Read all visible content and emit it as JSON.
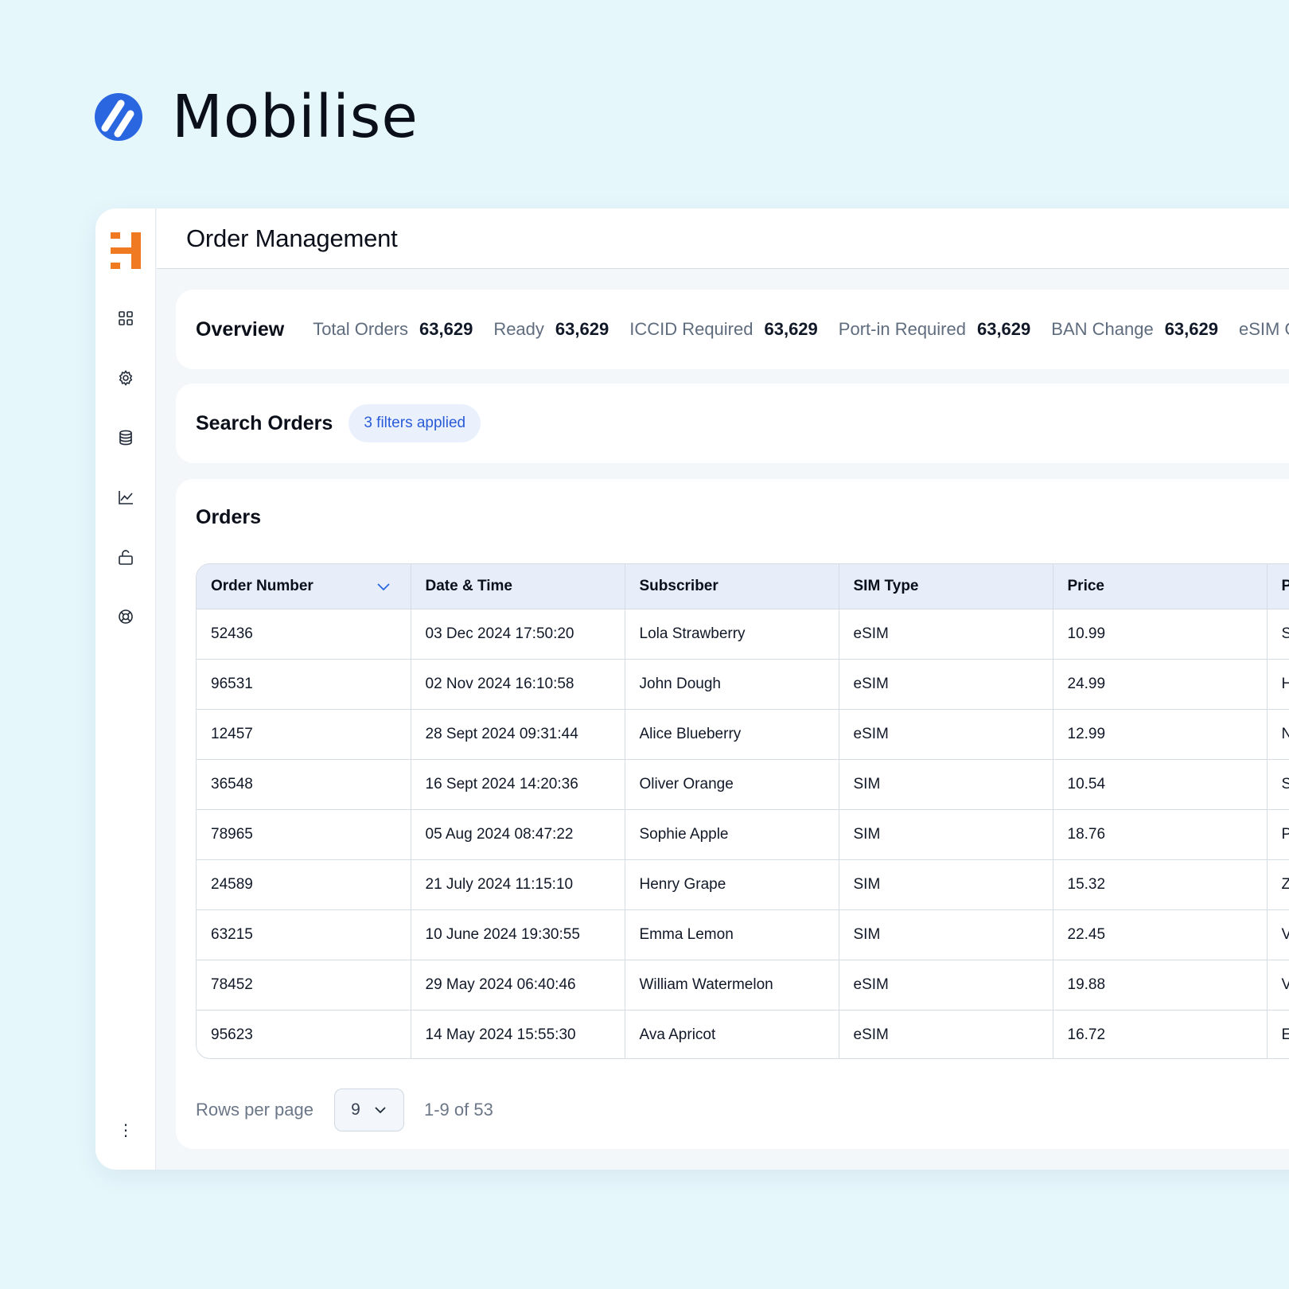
{
  "brand": {
    "name": "Mobilise"
  },
  "header": {
    "title": "Order Management"
  },
  "sidebar": {
    "items": [
      {
        "icon": "grid-icon"
      },
      {
        "icon": "gear-icon"
      },
      {
        "icon": "database-icon"
      },
      {
        "icon": "chart-icon"
      },
      {
        "icon": "unlock-icon"
      },
      {
        "icon": "lifebuoy-icon"
      }
    ],
    "more": "⋮"
  },
  "overview": {
    "title": "Overview",
    "stats": [
      {
        "label": "Total Orders",
        "value": "63,629"
      },
      {
        "label": "Ready",
        "value": "63,629"
      },
      {
        "label": "ICCID Required",
        "value": "63,629"
      },
      {
        "label": "Port-in Required",
        "value": "63,629"
      },
      {
        "label": "BAN Change",
        "value": "63,629"
      },
      {
        "label": "eSIM Ord",
        "value": ""
      }
    ]
  },
  "search": {
    "title": "Search Orders",
    "filters": "3 filters applied"
  },
  "orders": {
    "title": "Orders",
    "columns": [
      "Order Number",
      "Date & Time",
      "Subscriber",
      "SIM Type",
      "Price",
      "P"
    ],
    "rows": [
      [
        "52436",
        "03 Dec 2024 17:50:20",
        "Lola Strawberry",
        "eSIM",
        "10.99",
        "S"
      ],
      [
        "96531",
        "02 Nov 2024 16:10:58",
        "John Dough",
        "eSIM",
        "24.99",
        "H"
      ],
      [
        "12457",
        "28 Sept 2024 09:31:44",
        "Alice Blueberry",
        "eSIM",
        "12.99",
        "N"
      ],
      [
        "36548",
        "16 Sept 2024 14:20:36",
        "Oliver Orange",
        "SIM",
        "10.54",
        "S"
      ],
      [
        "78965",
        "05 Aug 2024 08:47:22",
        "Sophie Apple",
        "SIM",
        "18.76",
        "P"
      ],
      [
        "24589",
        "21 July 2024 11:15:10",
        "Henry Grape",
        "SIM",
        "15.32",
        "Z"
      ],
      [
        "63215",
        "10 June 2024 19:30:55",
        "Emma Lemon",
        "SIM",
        "22.45",
        "V"
      ],
      [
        "78452",
        "29 May 2024 06:40:46",
        "William Watermelon",
        "eSIM",
        "19.88",
        "V"
      ],
      [
        "95623",
        "14 May 2024 15:55:30",
        "Ava Apricot",
        "eSIM",
        "16.72",
        "E"
      ]
    ],
    "pagination": {
      "rows_label": "Rows per page",
      "rows_value": "9",
      "range": "1-9 of 53"
    }
  },
  "colors": {
    "background": "#e6f7fc",
    "accent": "#2a66e0",
    "brand_orange": "#f07a22",
    "header_row": "#e7eef9"
  }
}
